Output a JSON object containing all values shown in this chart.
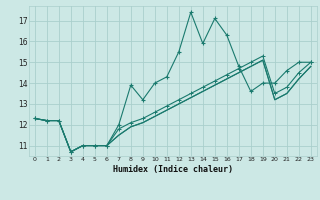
{
  "xlabel": "Humidex (Indice chaleur)",
  "ylabel": "",
  "bg_color": "#cce8e5",
  "grid_color": "#aacfcc",
  "line_color": "#1a7a6e",
  "xlim": [
    -0.5,
    23.5
  ],
  "ylim": [
    10.5,
    17.7
  ],
  "yticks": [
    11,
    12,
    13,
    14,
    15,
    16,
    17
  ],
  "xticks": [
    0,
    1,
    2,
    3,
    4,
    5,
    6,
    7,
    8,
    9,
    10,
    11,
    12,
    13,
    14,
    15,
    16,
    17,
    18,
    19,
    20,
    21,
    22,
    23
  ],
  "series": [
    [
      12.3,
      12.2,
      12.2,
      10.7,
      11.0,
      11.0,
      11.0,
      12.0,
      13.9,
      13.2,
      14.0,
      14.3,
      15.5,
      17.4,
      15.9,
      17.1,
      16.3,
      14.8,
      13.6,
      14.0,
      14.0,
      14.6,
      15.0,
      15.0
    ],
    [
      12.3,
      12.2,
      12.2,
      10.7,
      11.0,
      11.0,
      11.0,
      11.8,
      12.1,
      12.3,
      12.6,
      12.9,
      13.2,
      13.5,
      13.8,
      14.1,
      14.4,
      14.7,
      15.0,
      15.3,
      13.5,
      13.8,
      14.5,
      15.0
    ],
    [
      12.3,
      12.2,
      12.2,
      10.7,
      11.0,
      11.0,
      11.0,
      11.5,
      11.9,
      12.1,
      12.4,
      12.7,
      13.0,
      13.3,
      13.6,
      13.9,
      14.2,
      14.5,
      14.8,
      15.1,
      13.2,
      13.5,
      14.2,
      14.8
    ],
    [
      12.3,
      12.2,
      12.2,
      10.7,
      11.0,
      11.0,
      11.0,
      11.5,
      11.9,
      12.1,
      12.4,
      12.7,
      13.0,
      13.3,
      13.6,
      13.9,
      14.2,
      14.5,
      14.8,
      15.1,
      13.2,
      13.5,
      14.2,
      14.8
    ]
  ]
}
